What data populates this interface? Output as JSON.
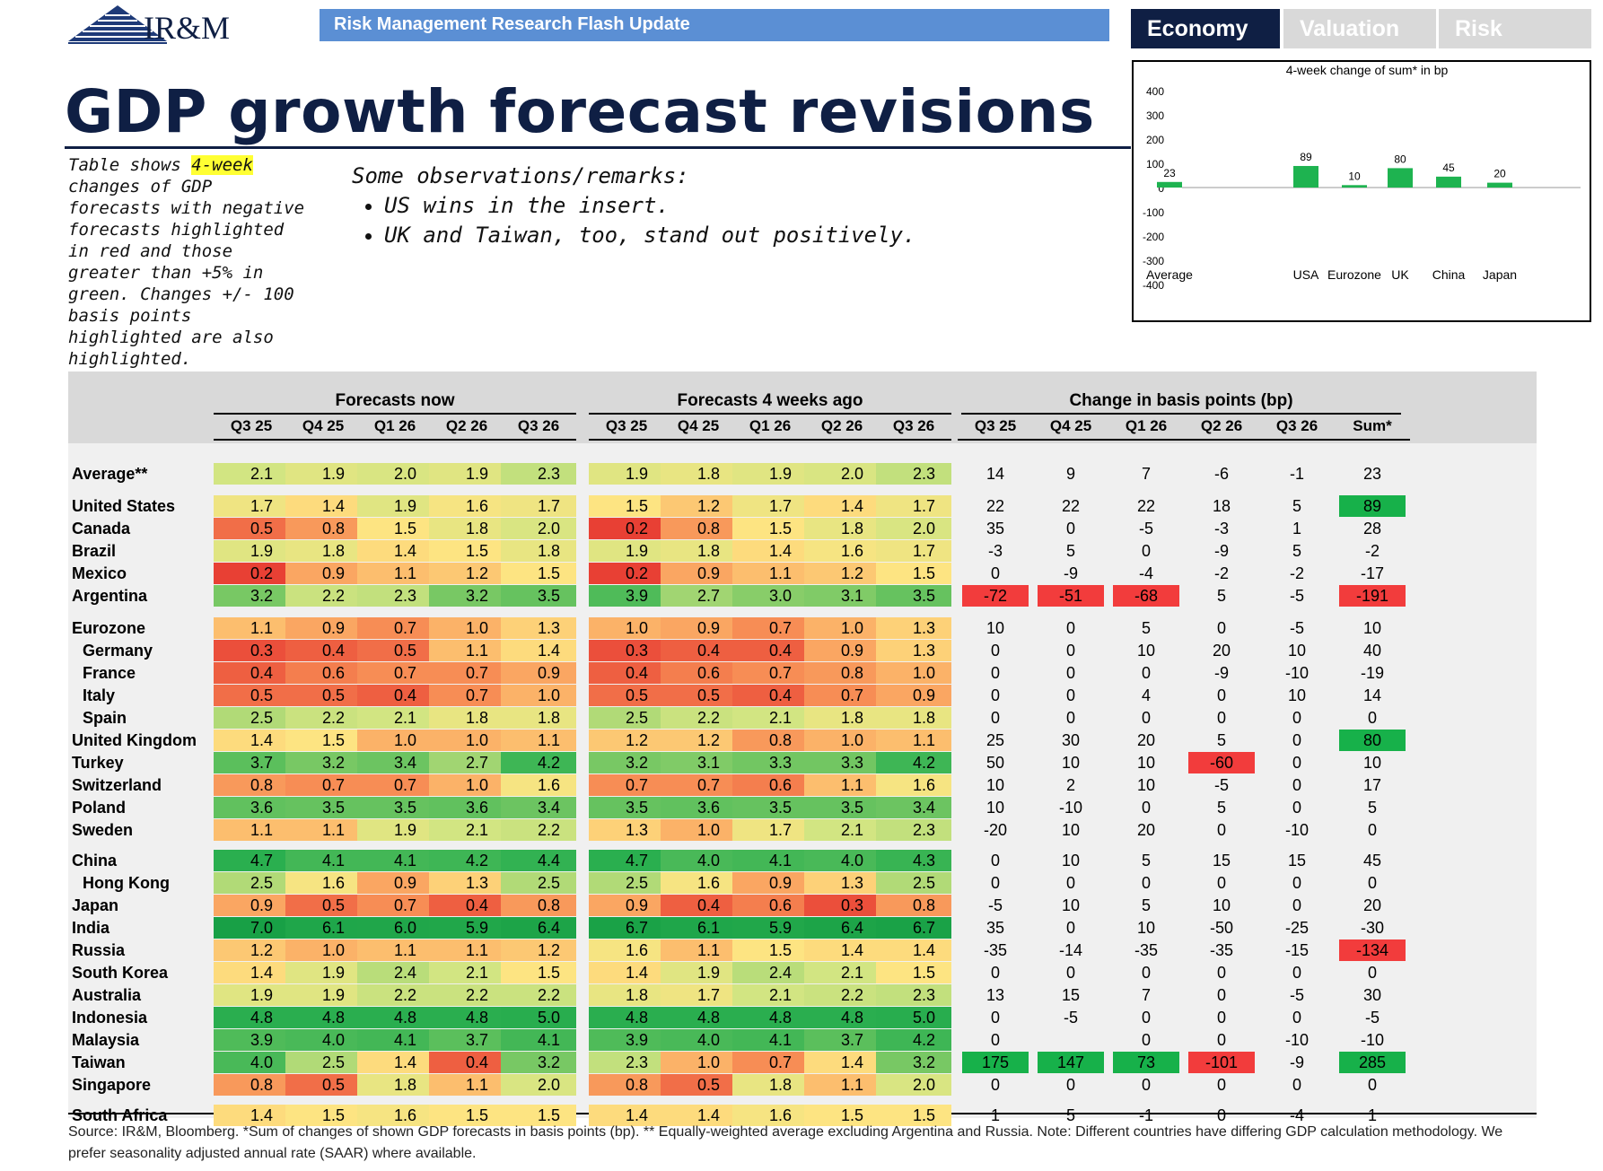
{
  "brand": {
    "logo_text": "IR&M",
    "flash_update": "Risk Management Research Flash Update"
  },
  "tabs": [
    {
      "label": "Economy"
    },
    {
      "label": "Valuation"
    },
    {
      "label": "Risk"
    }
  ],
  "title": "GDP growth forecast revisions",
  "note": {
    "before": "Table shows ",
    "highlight": "4-week",
    "after": " changes of GDP forecasts with negative forecasts highlighted in red and those greater than +5% in green. Changes +/- 100 basis points highlighted are also highlighted."
  },
  "remarks": {
    "heading": "Some observations/remarks:",
    "items": [
      "US wins in the insert.",
      "UK and Taiwan, too, stand out positively."
    ]
  },
  "colors": {
    "navy": "#0f1f44",
    "bar_green": "#1eb350",
    "strong_red": "#f23c3c",
    "strong_green": "#17b14a"
  },
  "chart_data": {
    "type": "bar",
    "title": "4-week change of sum* in bp",
    "categories": [
      "Average",
      "USA",
      "Eurozone",
      "UK",
      "China",
      "Japan"
    ],
    "values": [
      23,
      89,
      10,
      80,
      45,
      20
    ],
    "ylim": [
      -400,
      400
    ],
    "yticks": [
      "400",
      "300",
      "200",
      "100",
      "0",
      "-100",
      "-200",
      "-300",
      "-400"
    ],
    "xlabel": "",
    "ylabel": ""
  },
  "table": {
    "groups": [
      "Forecasts now",
      "Forecasts 4 weeks ago",
      "Change in basis points (bp)"
    ],
    "quarters": [
      "Q3 25",
      "Q4 25",
      "Q1 26",
      "Q2 26",
      "Q3 26"
    ],
    "sum_header": "Sum*",
    "rows": [
      {
        "name": "Average**",
        "now": [
          "2.1",
          "1.9",
          "2.0",
          "1.9",
          "2.3"
        ],
        "ago": [
          "1.9",
          "1.8",
          "1.9",
          "2.0",
          "2.3"
        ],
        "chg": [
          "14",
          "9",
          "7",
          "-6",
          "-1",
          "23"
        ]
      },
      {
        "name": "United States",
        "now": [
          "1.7",
          "1.4",
          "1.9",
          "1.6",
          "1.7"
        ],
        "ago": [
          "1.5",
          "1.2",
          "1.7",
          "1.4",
          "1.7"
        ],
        "chg": [
          "22",
          "22",
          "22",
          "18",
          "5",
          "89"
        ]
      },
      {
        "name": "Canada",
        "now": [
          "0.5",
          "0.8",
          "1.5",
          "1.8",
          "2.0"
        ],
        "ago": [
          "0.2",
          "0.8",
          "1.5",
          "1.8",
          "2.0"
        ],
        "chg": [
          "35",
          "0",
          "-5",
          "-3",
          "1",
          "28"
        ]
      },
      {
        "name": "Brazil",
        "now": [
          "1.9",
          "1.8",
          "1.4",
          "1.5",
          "1.8"
        ],
        "ago": [
          "1.9",
          "1.8",
          "1.4",
          "1.6",
          "1.7"
        ],
        "chg": [
          "-3",
          "5",
          "0",
          "-9",
          "5",
          "-2"
        ]
      },
      {
        "name": "Mexico",
        "now": [
          "0.2",
          "0.9",
          "1.1",
          "1.2",
          "1.5"
        ],
        "ago": [
          "0.2",
          "0.9",
          "1.1",
          "1.2",
          "1.5"
        ],
        "chg": [
          "0",
          "-9",
          "-4",
          "-2",
          "-2",
          "-17"
        ]
      },
      {
        "name": "Argentina",
        "now": [
          "3.2",
          "2.2",
          "2.3",
          "3.2",
          "3.5"
        ],
        "ago": [
          "3.9",
          "2.7",
          "3.0",
          "3.1",
          "3.5"
        ],
        "chg": [
          "-72",
          "-51",
          "-68",
          "5",
          "-5",
          "-191"
        ]
      },
      {
        "name": "Eurozone",
        "now": [
          "1.1",
          "0.9",
          "0.7",
          "1.0",
          "1.3"
        ],
        "ago": [
          "1.0",
          "0.9",
          "0.7",
          "1.0",
          "1.3"
        ],
        "chg": [
          "10",
          "0",
          "5",
          "0",
          "-5",
          "10"
        ]
      },
      {
        "name": "Germany",
        "now": [
          "0.3",
          "0.4",
          "0.5",
          "1.1",
          "1.4"
        ],
        "ago": [
          "0.3",
          "0.4",
          "0.4",
          "0.9",
          "1.3"
        ],
        "chg": [
          "0",
          "0",
          "10",
          "20",
          "10",
          "40"
        ]
      },
      {
        "name": "France",
        "now": [
          "0.4",
          "0.6",
          "0.7",
          "0.7",
          "0.9"
        ],
        "ago": [
          "0.4",
          "0.6",
          "0.7",
          "0.8",
          "1.0"
        ],
        "chg": [
          "0",
          "0",
          "0",
          "-9",
          "-10",
          "-19"
        ]
      },
      {
        "name": "Italy",
        "now": [
          "0.5",
          "0.5",
          "0.4",
          "0.7",
          "1.0"
        ],
        "ago": [
          "0.5",
          "0.5",
          "0.4",
          "0.7",
          "0.9"
        ],
        "chg": [
          "0",
          "0",
          "4",
          "0",
          "10",
          "14"
        ]
      },
      {
        "name": "Spain",
        "now": [
          "2.5",
          "2.2",
          "2.1",
          "1.8",
          "1.8"
        ],
        "ago": [
          "2.5",
          "2.2",
          "2.1",
          "1.8",
          "1.8"
        ],
        "chg": [
          "0",
          "0",
          "0",
          "0",
          "0",
          "0"
        ]
      },
      {
        "name": "United Kingdom",
        "now": [
          "1.4",
          "1.5",
          "1.0",
          "1.0",
          "1.1"
        ],
        "ago": [
          "1.2",
          "1.2",
          "0.8",
          "1.0",
          "1.1"
        ],
        "chg": [
          "25",
          "30",
          "20",
          "5",
          "0",
          "80"
        ]
      },
      {
        "name": "Turkey",
        "now": [
          "3.7",
          "3.2",
          "3.4",
          "2.7",
          "4.2"
        ],
        "ago": [
          "3.2",
          "3.1",
          "3.3",
          "3.3",
          "4.2"
        ],
        "chg": [
          "50",
          "10",
          "10",
          "-60",
          "0",
          "10"
        ]
      },
      {
        "name": "Switzerland",
        "now": [
          "0.8",
          "0.7",
          "0.7",
          "1.0",
          "1.6"
        ],
        "ago": [
          "0.7",
          "0.7",
          "0.6",
          "1.1",
          "1.6"
        ],
        "chg": [
          "10",
          "2",
          "10",
          "-5",
          "0",
          "17"
        ]
      },
      {
        "name": "Poland",
        "now": [
          "3.6",
          "3.5",
          "3.5",
          "3.6",
          "3.4"
        ],
        "ago": [
          "3.5",
          "3.6",
          "3.5",
          "3.5",
          "3.4"
        ],
        "chg": [
          "10",
          "-10",
          "0",
          "5",
          "0",
          "5"
        ]
      },
      {
        "name": "Sweden",
        "now": [
          "1.1",
          "1.1",
          "1.9",
          "2.1",
          "2.2"
        ],
        "ago": [
          "1.3",
          "1.0",
          "1.7",
          "2.1",
          "2.3"
        ],
        "chg": [
          "-20",
          "10",
          "20",
          "0",
          "-10",
          "0"
        ]
      },
      {
        "name": "China",
        "now": [
          "4.7",
          "4.1",
          "4.1",
          "4.2",
          "4.4"
        ],
        "ago": [
          "4.7",
          "4.0",
          "4.1",
          "4.0",
          "4.3"
        ],
        "chg": [
          "0",
          "10",
          "5",
          "15",
          "15",
          "45"
        ]
      },
      {
        "name": "Hong Kong",
        "now": [
          "2.5",
          "1.6",
          "0.9",
          "1.3",
          "2.5"
        ],
        "ago": [
          "2.5",
          "1.6",
          "0.9",
          "1.3",
          "2.5"
        ],
        "chg": [
          "0",
          "0",
          "0",
          "0",
          "0",
          "0"
        ]
      },
      {
        "name": "Japan",
        "now": [
          "0.9",
          "0.5",
          "0.7",
          "0.4",
          "0.8"
        ],
        "ago": [
          "0.9",
          "0.4",
          "0.6",
          "0.3",
          "0.8"
        ],
        "chg": [
          "-5",
          "10",
          "5",
          "10",
          "0",
          "20"
        ]
      },
      {
        "name": "India",
        "now": [
          "7.0",
          "6.1",
          "6.0",
          "5.9",
          "6.4"
        ],
        "ago": [
          "6.7",
          "6.1",
          "5.9",
          "6.4",
          "6.7"
        ],
        "chg": [
          "35",
          "0",
          "10",
          "-50",
          "-25",
          "-30"
        ]
      },
      {
        "name": "Russia",
        "now": [
          "1.2",
          "1.0",
          "1.1",
          "1.1",
          "1.2"
        ],
        "ago": [
          "1.6",
          "1.1",
          "1.5",
          "1.4",
          "1.4"
        ],
        "chg": [
          "-35",
          "-14",
          "-35",
          "-35",
          "-15",
          "-134"
        ]
      },
      {
        "name": "South Korea",
        "now": [
          "1.4",
          "1.9",
          "2.4",
          "2.1",
          "1.5"
        ],
        "ago": [
          "1.4",
          "1.9",
          "2.4",
          "2.1",
          "1.5"
        ],
        "chg": [
          "0",
          "0",
          "0",
          "0",
          "0",
          "0"
        ]
      },
      {
        "name": "Australia",
        "now": [
          "1.9",
          "1.9",
          "2.2",
          "2.2",
          "2.2"
        ],
        "ago": [
          "1.8",
          "1.7",
          "2.1",
          "2.2",
          "2.3"
        ],
        "chg": [
          "13",
          "15",
          "7",
          "0",
          "-5",
          "30"
        ]
      },
      {
        "name": "Indonesia",
        "now": [
          "4.8",
          "4.8",
          "4.8",
          "4.8",
          "5.0"
        ],
        "ago": [
          "4.8",
          "4.8",
          "4.8",
          "4.8",
          "5.0"
        ],
        "chg": [
          "0",
          "-5",
          "0",
          "0",
          "0",
          "-5"
        ]
      },
      {
        "name": "Malaysia",
        "now": [
          "3.9",
          "4.0",
          "4.1",
          "3.7",
          "4.1"
        ],
        "ago": [
          "3.9",
          "4.0",
          "4.1",
          "3.7",
          "4.2"
        ],
        "chg": [
          "0",
          "",
          "0",
          "0",
          "-10",
          "-10"
        ]
      },
      {
        "name": "Taiwan",
        "now": [
          "4.0",
          "2.5",
          "1.4",
          "0.4",
          "3.2"
        ],
        "ago": [
          "2.3",
          "1.0",
          "0.7",
          "1.4",
          "3.2"
        ],
        "chg": [
          "175",
          "147",
          "73",
          "-101",
          "-9",
          "285"
        ]
      },
      {
        "name": "Singapore",
        "now": [
          "0.8",
          "0.5",
          "1.8",
          "1.1",
          "2.0"
        ],
        "ago": [
          "0.8",
          "0.5",
          "1.8",
          "1.1",
          "2.0"
        ],
        "chg": [
          "0",
          "0",
          "0",
          "0",
          "0",
          "0"
        ]
      },
      {
        "name": "South Africa",
        "now": [
          "1.4",
          "1.5",
          "1.6",
          "1.5",
          "1.5"
        ],
        "ago": [
          "1.4",
          "1.4",
          "1.6",
          "1.5",
          "1.5"
        ],
        "chg": [
          "1",
          "5",
          "-1",
          "0",
          "-4",
          "1"
        ]
      }
    ]
  },
  "source": "Source: IR&M, Bloomberg. *Sum of changes of shown GDP forecasts in basis points (bp). ** Equally-weighted average excluding Argentina and Russia. Note: Different countries have differing GDP calculation methodology. We prefer seasonality adjusted annual rate (SAAR) where available."
}
